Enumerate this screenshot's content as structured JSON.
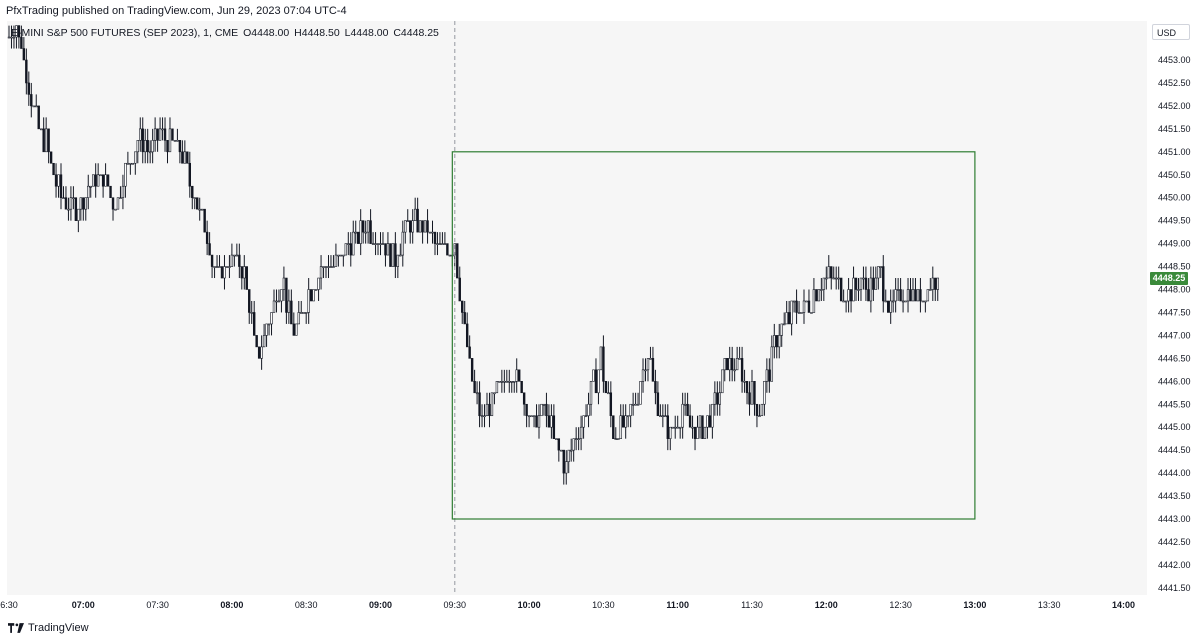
{
  "header": {
    "publisher_line": "PfxTrading published on TradingView.com, Jun 29, 2023 07:04 UTC-4"
  },
  "legend": {
    "symbol": "E-MINI S&P 500 FUTURES (SEP 2023), 1, CME",
    "open": "O4448.00",
    "high": "H4448.50",
    "low": "L4448.00",
    "close": "C4448.25"
  },
  "price_axis": {
    "currency": "USD",
    "last_price_label": "4448.25"
  },
  "footer": {
    "brand": "TradingView"
  },
  "colors": {
    "candle": "#131722",
    "box": "#2e7d32",
    "last_price_bg": "#3a8a3a",
    "crosshair": "#9598a1"
  },
  "chart_data": {
    "type": "candlestick",
    "title": "E-MINI S&P 500 FUTURES (SEP 2023), 1, CME",
    "interval": "1 minute",
    "ylim": [
      4441.0,
      4454.0
    ],
    "y_ticks": [
      "4441.50",
      "4442.00",
      "4442.50",
      "4443.00",
      "4443.50",
      "4444.00",
      "4444.50",
      "4445.00",
      "4445.50",
      "4446.00",
      "4446.50",
      "4447.00",
      "4447.50",
      "4448.00",
      "4448.50",
      "4449.00",
      "4449.50",
      "4450.00",
      "4450.50",
      "4451.00",
      "4451.50",
      "4452.00",
      "4452.50",
      "4453.00"
    ],
    "x_ticks": [
      {
        "label": "6:30",
        "major": false
      },
      {
        "label": "07:00",
        "major": true
      },
      {
        "label": "07:30",
        "major": false
      },
      {
        "label": "08:00",
        "major": true
      },
      {
        "label": "08:30",
        "major": false
      },
      {
        "label": "09:00",
        "major": true
      },
      {
        "label": "09:30",
        "major": false
      },
      {
        "label": "10:00",
        "major": true
      },
      {
        "label": "10:30",
        "major": false
      },
      {
        "label": "11:00",
        "major": true
      },
      {
        "label": "11:30",
        "major": false
      },
      {
        "label": "12:00",
        "major": true
      },
      {
        "label": "12:30",
        "major": false
      },
      {
        "label": "13:00",
        "major": true
      },
      {
        "label": "13:30",
        "major": false
      },
      {
        "label": "14:00",
        "major": true
      }
    ],
    "time_start_minutes": 390,
    "minutes_per_tick": 30,
    "last_price": 4448.25,
    "crosshair_time": "09:30",
    "rectangle": {
      "start": "09:29",
      "end": "13:00",
      "top": 4451.0,
      "bottom": 4443.0
    },
    "close_path": [
      {
        "t": "06:30",
        "p": 4453.5
      },
      {
        "t": "06:33",
        "p": 4453.8
      },
      {
        "t": "06:36",
        "p": 4453.0
      },
      {
        "t": "06:40",
        "p": 4451.8
      },
      {
        "t": "06:45",
        "p": 4451.2
      },
      {
        "t": "06:48",
        "p": 4450.5
      },
      {
        "t": "06:52",
        "p": 4450.0
      },
      {
        "t": "06:57",
        "p": 4449.8
      },
      {
        "t": "07:02",
        "p": 4450.2
      },
      {
        "t": "07:08",
        "p": 4450.4
      },
      {
        "t": "07:13",
        "p": 4449.9
      },
      {
        "t": "07:18",
        "p": 4450.7
      },
      {
        "t": "07:22",
        "p": 4451.3
      },
      {
        "t": "07:27",
        "p": 4451.1
      },
      {
        "t": "07:31",
        "p": 4451.4
      },
      {
        "t": "07:35",
        "p": 4451.3
      },
      {
        "t": "07:40",
        "p": 4450.9
      },
      {
        "t": "07:45",
        "p": 4450.0
      },
      {
        "t": "07:50",
        "p": 4449.1
      },
      {
        "t": "07:54",
        "p": 4448.3
      },
      {
        "t": "08:00",
        "p": 4448.7
      },
      {
        "t": "08:05",
        "p": 4448.4
      },
      {
        "t": "08:10",
        "p": 4446.5
      },
      {
        "t": "08:14",
        "p": 4447.2
      },
      {
        "t": "08:20",
        "p": 4448.3
      },
      {
        "t": "08:25",
        "p": 4447.0
      },
      {
        "t": "08:30",
        "p": 4447.8
      },
      {
        "t": "08:36",
        "p": 4448.4
      },
      {
        "t": "08:42",
        "p": 4448.6
      },
      {
        "t": "08:48",
        "p": 4449.0
      },
      {
        "t": "08:54",
        "p": 4449.4
      },
      {
        "t": "09:00",
        "p": 4449.1
      },
      {
        "t": "09:06",
        "p": 4448.7
      },
      {
        "t": "09:12",
        "p": 4449.5
      },
      {
        "t": "09:18",
        "p": 4449.4
      },
      {
        "t": "09:24",
        "p": 4448.9
      },
      {
        "t": "09:30",
        "p": 4449.0
      },
      {
        "t": "09:33",
        "p": 4447.6
      },
      {
        "t": "09:37",
        "p": 4446.0
      },
      {
        "t": "09:41",
        "p": 4445.1
      },
      {
        "t": "09:46",
        "p": 4445.6
      },
      {
        "t": "09:52",
        "p": 4446.3
      },
      {
        "t": "09:57",
        "p": 4445.9
      },
      {
        "t": "10:01",
        "p": 4445.0
      },
      {
        "t": "10:06",
        "p": 4445.4
      },
      {
        "t": "10:11",
        "p": 4444.6
      },
      {
        "t": "10:15",
        "p": 4444.2
      },
      {
        "t": "10:20",
        "p": 4444.9
      },
      {
        "t": "10:25",
        "p": 4445.7
      },
      {
        "t": "10:29",
        "p": 4446.5
      },
      {
        "t": "10:34",
        "p": 4444.9
      },
      {
        "t": "10:39",
        "p": 4445.0
      },
      {
        "t": "10:44",
        "p": 4445.8
      },
      {
        "t": "10:48",
        "p": 4446.6
      },
      {
        "t": "10:52",
        "p": 4445.4
      },
      {
        "t": "10:57",
        "p": 4444.8
      },
      {
        "t": "11:02",
        "p": 4445.4
      },
      {
        "t": "11:06",
        "p": 4445.0
      },
      {
        "t": "11:11",
        "p": 4444.9
      },
      {
        "t": "11:15",
        "p": 4445.5
      },
      {
        "t": "11:20",
        "p": 4446.4
      },
      {
        "t": "11:25",
        "p": 4446.3
      },
      {
        "t": "11:29",
        "p": 4445.8
      },
      {
        "t": "11:33",
        "p": 4445.4
      },
      {
        "t": "11:37",
        "p": 4446.3
      },
      {
        "t": "11:41",
        "p": 4447.1
      },
      {
        "t": "11:46",
        "p": 4447.5
      },
      {
        "t": "11:51",
        "p": 4447.6
      },
      {
        "t": "11:56",
        "p": 4448.0
      },
      {
        "t": "12:01",
        "p": 4448.3
      },
      {
        "t": "12:05",
        "p": 4448.0
      },
      {
        "t": "12:09",
        "p": 4447.8
      },
      {
        "t": "12:13",
        "p": 4448.2
      },
      {
        "t": "12:17",
        "p": 4448.0
      },
      {
        "t": "12:22",
        "p": 4448.3
      },
      {
        "t": "12:26",
        "p": 4447.5
      },
      {
        "t": "12:30",
        "p": 4448.0
      },
      {
        "t": "12:34",
        "p": 4447.9
      },
      {
        "t": "12:38",
        "p": 4447.8
      },
      {
        "t": "12:42",
        "p": 4448.1
      },
      {
        "t": "12:45",
        "p": 4448.25
      }
    ],
    "xlabel": "",
    "ylabel": ""
  }
}
